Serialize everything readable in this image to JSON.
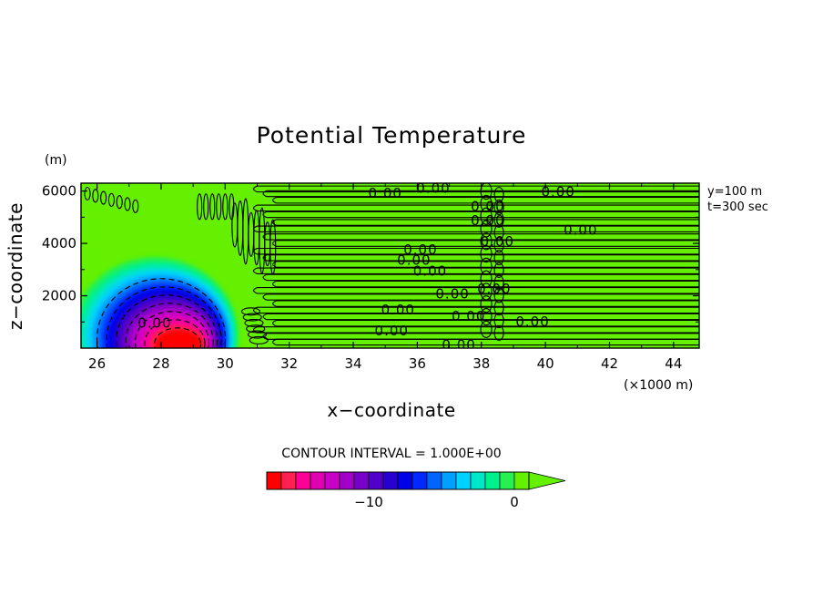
{
  "chart_data": {
    "type": "contour",
    "title": "Potential Temperature",
    "xlabel": "x−coordinate",
    "ylabel": "z−coordinate",
    "x_unit": "(×1000 m)",
    "y_unit": "(m)",
    "xlim": [
      25.5,
      44.8
    ],
    "ylim": [
      0,
      6300
    ],
    "x_ticks": [
      26,
      28,
      30,
      32,
      34,
      36,
      38,
      40,
      42,
      44
    ],
    "y_ticks": [
      2000,
      4000,
      6000
    ],
    "x_tick_labels": [
      "26",
      "28",
      "30",
      "32",
      "34",
      "36",
      "38",
      "40",
      "42",
      "44"
    ],
    "y_tick_labels": [
      "2000",
      "4000",
      "6000"
    ],
    "info_lines": [
      "y=100 m",
      "t=300 sec"
    ],
    "contour_interval_label": "CONTOUR INTERVAL = 1.000E+00",
    "contour_labels": [
      {
        "text": "0.00",
        "x": 35.0,
        "z": 5950
      },
      {
        "text": "0.00",
        "x": 36.5,
        "z": 6150
      },
      {
        "text": "0.00",
        "x": 38.2,
        "z": 5450
      },
      {
        "text": "0.00",
        "x": 38.2,
        "z": 4900
      },
      {
        "text": "0.00",
        "x": 40.4,
        "z": 6000
      },
      {
        "text": "0.00",
        "x": 41.1,
        "z": 4550
      },
      {
        "text": "0.00",
        "x": 36.1,
        "z": 3800
      },
      {
        "text": "0.00",
        "x": 35.9,
        "z": 3400
      },
      {
        "text": "0.00",
        "x": 36.4,
        "z": 2970
      },
      {
        "text": "0.00",
        "x": 37.1,
        "z": 2100
      },
      {
        "text": "0.00",
        "x": 35.4,
        "z": 1500
      },
      {
        "text": "0.00",
        "x": 37.6,
        "z": 1250
      },
      {
        "text": "0.00",
        "x": 39.6,
        "z": 1050
      },
      {
        "text": "0.00",
        "x": 35.2,
        "z": 700
      },
      {
        "text": "0.00",
        "x": 37.3,
        "z": 150
      },
      {
        "text": "0.00",
        "x": 38.5,
        "z": 4100
      },
      {
        "text": "0.00",
        "x": 38.4,
        "z": 2300
      },
      {
        "text": "0.00",
        "x": 27.8,
        "z": 1000
      }
    ],
    "colorbar": {
      "tick_values": [
        -10,
        0
      ],
      "tick_labels": [
        "−10",
        "0"
      ],
      "levels": [
        -16,
        -15,
        -14,
        -13,
        -12,
        -11,
        -10,
        -9,
        -8,
        -7,
        -6,
        -5,
        -4,
        -3,
        -2,
        -1,
        0
      ],
      "colors": [
        "#ff0000",
        "#ff2050",
        "#ff0096",
        "#e000b4",
        "#c800c8",
        "#a000c8",
        "#7800c8",
        "#5000c8",
        "#2800d2",
        "#0000e6",
        "#0028ff",
        "#0064ff",
        "#00a0ff",
        "#00d2ff",
        "#00e6c8",
        "#00f08c",
        "#28f050",
        "#64f000"
      ],
      "extend_above": true
    },
    "background_color": "#64f000",
    "cold_bubble_center": {
      "x": 28.6,
      "z": 250
    },
    "minimum_value": -16
  }
}
